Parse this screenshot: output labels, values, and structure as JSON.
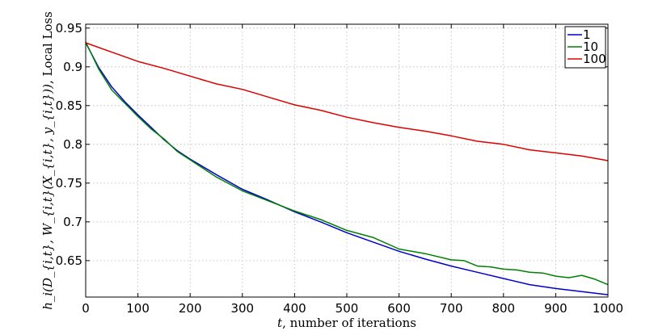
{
  "chart_data": {
    "type": "line",
    "xlabel_math": "t",
    "xlabel_text": ", number of iterations",
    "ylabel_math": "h_i(D_{i,t}, W_{i,t}(X_{i,t}, y_{i,t}))",
    "ylabel_text": ", Local Loss",
    "xlim": [
      0,
      1000
    ],
    "ylim": [
      0.603,
      0.955
    ],
    "xticks": [
      0,
      100,
      200,
      300,
      400,
      500,
      600,
      700,
      800,
      900,
      1000
    ],
    "xtick_labels": [
      "0",
      "100",
      "200",
      "300",
      "400",
      "500",
      "600",
      "700",
      "800",
      "900",
      "1000"
    ],
    "yticks": [
      0.65,
      0.7,
      0.75,
      0.8,
      0.85,
      0.9,
      0.95
    ],
    "ytick_labels": [
      "0.65",
      "0.7",
      "0.75",
      "0.8",
      "0.85",
      "0.9",
      "0.95"
    ],
    "grid": true,
    "legend_position": "top-right",
    "series": [
      {
        "name": "1",
        "color": "#0000cc",
        "x": [
          0,
          25,
          50,
          75,
          100,
          125,
          150,
          175,
          200,
          250,
          300,
          350,
          400,
          450,
          500,
          550,
          600,
          650,
          700,
          750,
          800,
          850,
          900,
          950,
          1000
        ],
        "y": [
          0.931,
          0.899,
          0.874,
          0.855,
          0.838,
          0.822,
          0.806,
          0.792,
          0.781,
          0.761,
          0.742,
          0.728,
          0.713,
          0.7,
          0.686,
          0.674,
          0.662,
          0.652,
          0.643,
          0.635,
          0.627,
          0.619,
          0.614,
          0.61,
          0.606
        ]
      },
      {
        "name": "10",
        "color": "#008000",
        "x": [
          0,
          25,
          50,
          75,
          100,
          125,
          150,
          175,
          200,
          250,
          300,
          350,
          400,
          450,
          500,
          550,
          600,
          650,
          700,
          725,
          750,
          775,
          800,
          825,
          850,
          875,
          900,
          925,
          950,
          975,
          1000
        ],
        "y": [
          0.932,
          0.897,
          0.87,
          0.853,
          0.836,
          0.82,
          0.807,
          0.791,
          0.78,
          0.758,
          0.74,
          0.727,
          0.714,
          0.703,
          0.689,
          0.68,
          0.665,
          0.659,
          0.651,
          0.65,
          0.643,
          0.642,
          0.639,
          0.638,
          0.635,
          0.634,
          0.63,
          0.628,
          0.631,
          0.626,
          0.619
        ]
      },
      {
        "name": "100",
        "color": "#dd0000",
        "x": [
          0,
          50,
          100,
          150,
          200,
          250,
          300,
          350,
          400,
          450,
          500,
          550,
          600,
          650,
          700,
          750,
          800,
          850,
          900,
          950,
          1000
        ],
        "y": [
          0.931,
          0.919,
          0.907,
          0.898,
          0.888,
          0.878,
          0.871,
          0.861,
          0.851,
          0.844,
          0.835,
          0.828,
          0.822,
          0.817,
          0.811,
          0.804,
          0.8,
          0.793,
          0.789,
          0.785,
          0.779
        ]
      }
    ]
  }
}
